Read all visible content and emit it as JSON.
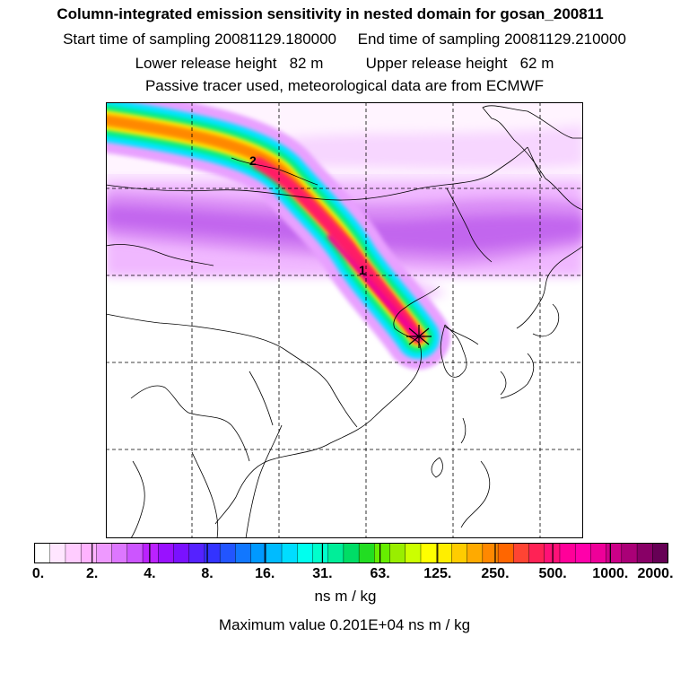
{
  "header": {
    "title": "Column-integrated emission sensitivity in nested domain for gosan_200811",
    "line2": "Start time of sampling 20081129.180000     End time of sampling 20081129.210000",
    "line3": "Lower release height   82 m          Upper release height   62 m",
    "line4": "Passive tracer used, meteorological data are from ECMWF"
  },
  "map": {
    "labels": [
      "2",
      "1"
    ],
    "release_marker": "release-star-icon"
  },
  "colorbar": {
    "ticks": [
      "0.",
      "2.",
      "4.",
      "8.",
      "16.",
      "31.",
      "63.",
      "125.",
      "250.",
      "500.",
      "1000.",
      "2000."
    ],
    "colors": [
      "#ffffff",
      "#ffe6ff",
      "#ffccff",
      "#ffb3ff",
      "#ee99ff",
      "#dd77ff",
      "#cc55ff",
      "#bb22ff",
      "#9911ff",
      "#7a11ff",
      "#5522ff",
      "#3333ff",
      "#2255ff",
      "#1177ff",
      "#0099ff",
      "#00bbff",
      "#00ddff",
      "#00ffee",
      "#00ffcc",
      "#00ee99",
      "#00dd66",
      "#22dd22",
      "#66ee00",
      "#99ee00",
      "#ccff00",
      "#ffff00",
      "#ffee00",
      "#ffcc00",
      "#ffaa00",
      "#ff8800",
      "#ff6600",
      "#ff4433",
      "#ff2255",
      "#ff1177",
      "#ff0099",
      "#ff00aa",
      "#ee0099",
      "#cc0088",
      "#aa0077",
      "#880066",
      "#660055"
    ]
  },
  "footer": {
    "units": "ns m / kg",
    "max_value": "Maximum value  0.201E+04 ns m / kg"
  }
}
